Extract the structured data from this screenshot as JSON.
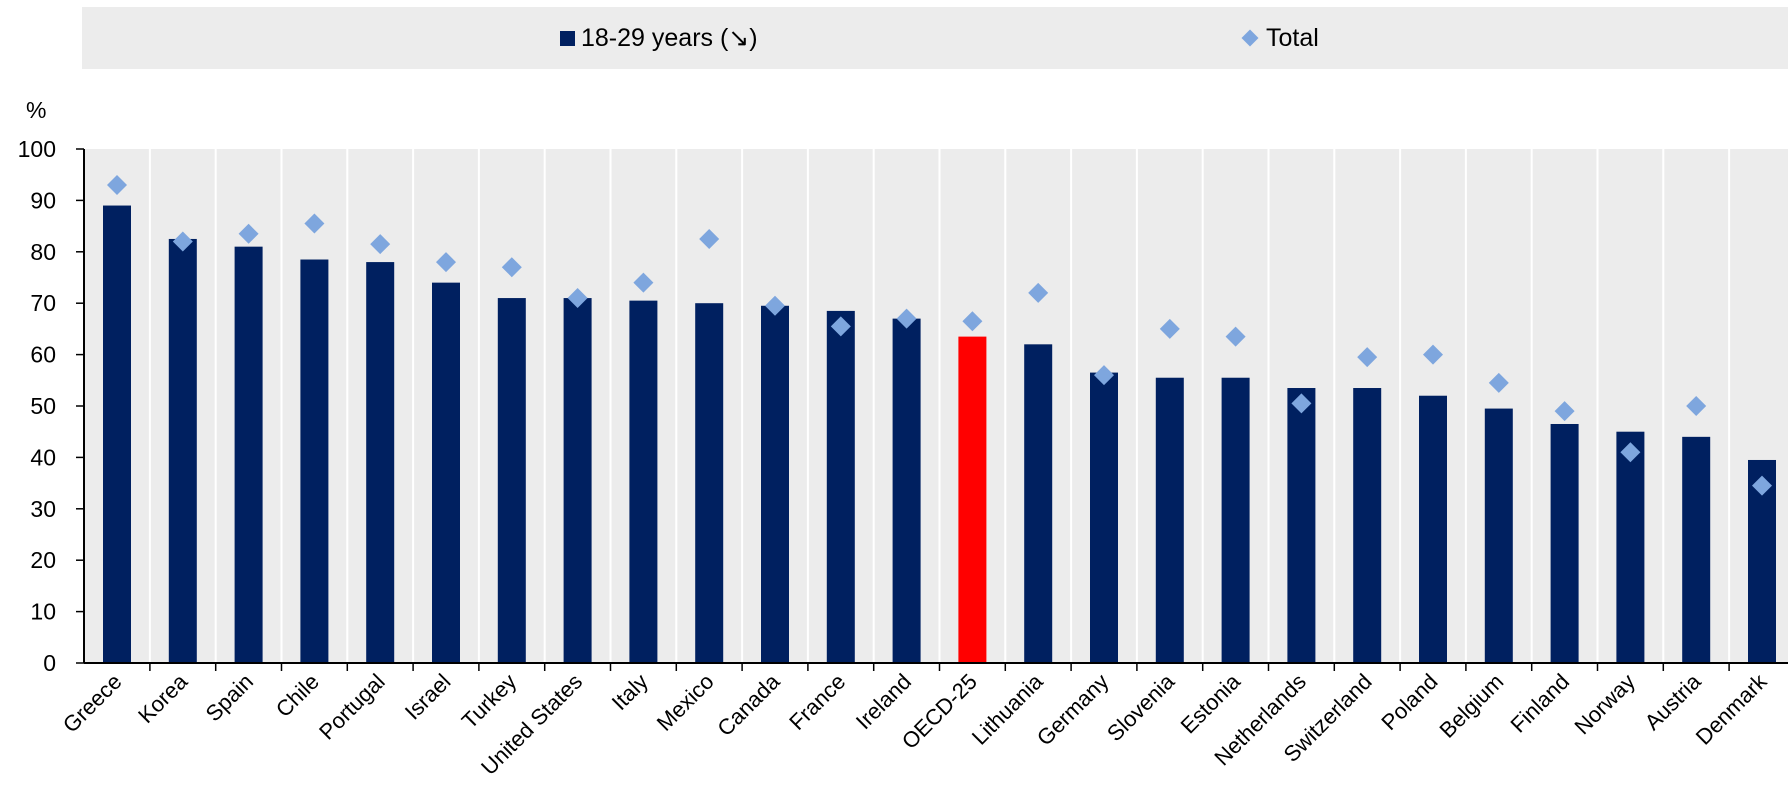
{
  "legend": {
    "series_bar": "18-29 years (↘)",
    "series_marker": "Total"
  },
  "y_unit": "%",
  "colors": {
    "bar": "#002060",
    "bar_highlight": "#ff0000",
    "marker": "#7ea6de",
    "plot_bg": "#ececec"
  },
  "chart_data": {
    "type": "bar",
    "categories": [
      "Greece",
      "Korea",
      "Spain",
      "Chile",
      "Portugal",
      "Israel",
      "Turkey",
      "United States",
      "Italy",
      "Mexico",
      "Canada",
      "France",
      "Ireland",
      "OECD-25",
      "Lithuania",
      "Germany",
      "Slovenia",
      "Estonia",
      "Netherlands",
      "Switzerland",
      "Poland",
      "Belgium",
      "Finland",
      "Norway",
      "Austria",
      "Denmark"
    ],
    "highlight_category": "OECD-25",
    "series": [
      {
        "name": "18-29 years (↘)",
        "kind": "bar",
        "values": [
          89,
          82.5,
          81,
          78.5,
          78,
          74,
          71,
          71,
          70.5,
          70,
          69.5,
          68.5,
          67,
          63.5,
          62,
          56.5,
          55.5,
          55.5,
          53.5,
          53.5,
          52,
          49.5,
          46.5,
          45,
          44,
          39.5
        ]
      },
      {
        "name": "Total",
        "kind": "marker",
        "values": [
          93,
          82,
          83.5,
          85.5,
          81.5,
          78,
          77,
          71,
          74,
          82.5,
          69.5,
          65.5,
          67,
          66.5,
          72,
          56,
          65,
          63.5,
          50.5,
          59.5,
          60,
          54.5,
          49,
          41,
          50,
          34.5
        ]
      }
    ],
    "ylim": [
      0,
      100
    ],
    "yticks": [
      0,
      10,
      20,
      30,
      40,
      50,
      60,
      70,
      80,
      90,
      100
    ],
    "title": "",
    "xlabel": "",
    "ylabel": "%",
    "grid": "vertical",
    "legend_position": "top"
  }
}
